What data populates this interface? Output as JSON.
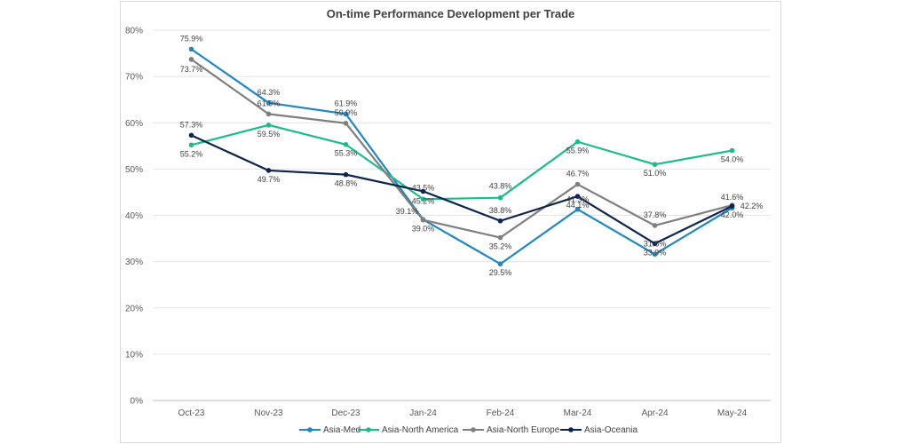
{
  "chart_data": {
    "type": "line",
    "title": "On-time Performance Development per Trade",
    "categories": [
      "Oct-23",
      "Nov-23",
      "Dec-23",
      "Jan-24",
      "Feb-24",
      "Mar-24",
      "Apr-24",
      "May-24"
    ],
    "ylim": [
      0,
      80
    ],
    "yticks": [
      "0%",
      "10%",
      "20%",
      "30%",
      "40%",
      "50%",
      "60%",
      "70%",
      "80%"
    ],
    "grid": true,
    "legend": "bottom",
    "series": [
      {
        "name": "Asia-Med",
        "color": "#1f86c8",
        "values": [
          75.9,
          64.3,
          61.9,
          39.1,
          29.5,
          41.3,
          31.6,
          41.6
        ],
        "labels": [
          "75.9%",
          "64.3%",
          "61.9%",
          "39.1%",
          "29.5%",
          "41.3%",
          "31.6%",
          "41.6%"
        ]
      },
      {
        "name": "Asia-North America",
        "color": "#1abc8c",
        "values": [
          55.2,
          59.5,
          55.3,
          43.5,
          43.8,
          55.9,
          51.0,
          54.0
        ],
        "labels": [
          "55.2%",
          "59.5%",
          "55.3%",
          "43.5%",
          "43.8%",
          "55.9%",
          "51.0%",
          "54.0%"
        ]
      },
      {
        "name": "Asia-North Europe",
        "color": "#7f7f7f",
        "values": [
          73.7,
          61.9,
          59.9,
          39.0,
          35.2,
          46.7,
          37.8,
          42.2
        ],
        "labels": [
          "73.7%",
          "61.9%",
          "59.9%",
          "39.0%",
          "35.2%",
          "46.7%",
          "37.8%",
          "42.2%"
        ]
      },
      {
        "name": "Asia-Oceania",
        "color": "#0b2451",
        "values": [
          57.3,
          49.7,
          48.8,
          45.2,
          38.8,
          44.1,
          33.9,
          42.0
        ],
        "labels": [
          "57.3%",
          "49.7%",
          "48.8%",
          "45.2%",
          "38.8%",
          "44.1%",
          "33.9%",
          "42.0%"
        ]
      }
    ]
  }
}
